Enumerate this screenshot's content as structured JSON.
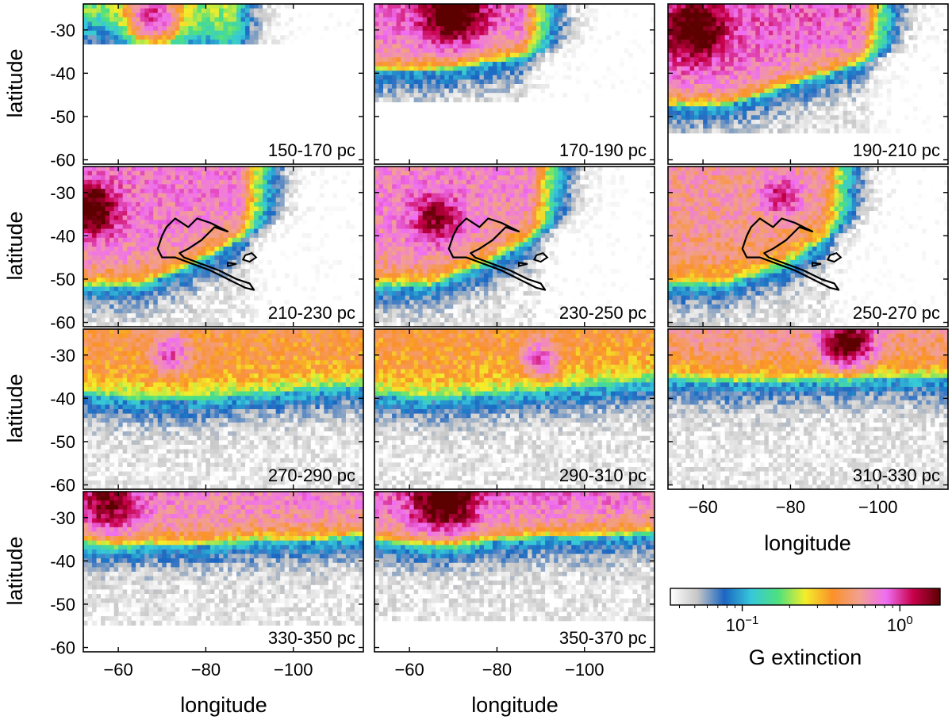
{
  "chart_data": {
    "type": "heatmap",
    "panels": [
      {
        "label": "150-170 pc",
        "map": {
          "seed": 1,
          "ridge": [
            -30,
            -30,
            -32,
            -36,
            -40,
            -40
          ],
          "fill": 0.15,
          "amp": 0.55,
          "rows": 12,
          "cutoff_lon": -86,
          "blob": [
            -68,
            -27,
            5,
            0.9
          ]
        }
      },
      {
        "label": "170-190 pc",
        "map": {
          "seed": 2,
          "ridge": [
            -40,
            -40,
            -38,
            -36,
            -34,
            -32
          ],
          "fill": 0.55,
          "amp": 1.0,
          "rows": 30,
          "cutoff_lon": -86,
          "blob": [
            -70,
            -26,
            6,
            1.6
          ]
        }
      },
      {
        "label": "190-210 pc",
        "map": {
          "seed": 3,
          "ridge": [
            -48,
            -48,
            -44,
            -40,
            -36,
            -34
          ],
          "fill": 0.6,
          "amp": 0.9,
          "rows": 40,
          "cutoff_lon": -96,
          "blob": [
            -58,
            -30,
            6,
            1.4
          ]
        }
      },
      {
        "label": "210-230 pc",
        "map": {
          "seed": 4,
          "ridge": [
            -52,
            -52,
            -47,
            -40,
            -36,
            -34
          ],
          "fill": 0.6,
          "amp": 0.7,
          "rows": 50,
          "cutoff_lon": -88,
          "blob": [
            -54,
            -34,
            5,
            1.5
          ]
        }
      },
      {
        "label": "230-250 pc",
        "map": {
          "seed": 5,
          "ridge": [
            -52,
            -52,
            -47,
            -40,
            -36,
            -34
          ],
          "fill": 0.58,
          "amp": 0.65,
          "rows": 50,
          "cutoff_lon": -88,
          "blob": [
            -66,
            -36,
            5,
            0.8
          ]
        }
      },
      {
        "label": "250-270 pc",
        "map": {
          "seed": 6,
          "ridge": [
            -52,
            -52,
            -48,
            -40,
            -36,
            -34
          ],
          "fill": 0.5,
          "amp": 0.55,
          "rows": 50,
          "cutoff_lon": -88,
          "blob": [
            -78,
            -31,
            4,
            0.6
          ]
        }
      },
      {
        "label": "270-290 pc",
        "map": {
          "seed": 7,
          "ridge": [
            -40,
            -41,
            -41,
            -40,
            -39,
            -38
          ],
          "fill": 0.4,
          "amp": 0.4,
          "rows": 50,
          "cutoff_lon": -130,
          "blob": [
            -72,
            -30,
            4,
            0.5
          ]
        }
      },
      {
        "label": "290-310 pc",
        "map": {
          "seed": 8,
          "ridge": [
            -40,
            -41,
            -40,
            -39,
            -38,
            -37
          ],
          "fill": 0.38,
          "amp": 0.4,
          "rows": 50,
          "cutoff_lon": -130,
          "blob": [
            -90,
            -31,
            4,
            0.5
          ]
        }
      },
      {
        "label": "310-330 pc",
        "map": {
          "seed": 9,
          "ridge": [
            -36,
            -37,
            -37,
            -36,
            -36,
            -36
          ],
          "fill": 0.5,
          "amp": 0.5,
          "rows": 50,
          "cutoff_lon": -130,
          "blob": [
            -93,
            -27,
            5,
            1.4
          ]
        }
      },
      {
        "label": "330-350 pc",
        "map": {
          "seed": 10,
          "ridge": [
            -36,
            -37,
            -37,
            -36,
            -36,
            -35
          ],
          "fill": 0.65,
          "amp": 0.6,
          "rows": 42,
          "cutoff_lon": -130,
          "blob": [
            -58,
            -27,
            6,
            0.9
          ]
        }
      },
      {
        "label": "350-370 pc",
        "map": {
          "seed": 11,
          "ridge": [
            -36,
            -37,
            -36,
            -35,
            -35,
            -34
          ],
          "fill": 0.75,
          "amp": 0.6,
          "rows": 40,
          "cutoff_lon": -130,
          "blob": [
            -68,
            -26,
            6,
            1.6
          ]
        }
      }
    ],
    "contour_panels": [
      "210-230 pc",
      "230-250 pc",
      "250-270 pc"
    ],
    "contour": {
      "outline": [
        [
          -85,
          -39
        ],
        [
          -82,
          -38
        ],
        [
          -80,
          -40
        ],
        [
          -79,
          -41
        ],
        [
          -76,
          -43
        ],
        [
          -74,
          -44
        ],
        [
          -75,
          -45
        ],
        [
          -79,
          -46.5
        ],
        [
          -83,
          -48
        ],
        [
          -87,
          -50
        ],
        [
          -90,
          -51
        ],
        [
          -91,
          -52.5
        ],
        [
          -89,
          -52
        ],
        [
          -86,
          -50.5
        ],
        [
          -81,
          -48
        ],
        [
          -77,
          -46.5
        ],
        [
          -73,
          -45
        ],
        [
          -70,
          -45
        ],
        [
          -69,
          -43
        ],
        [
          -70,
          -40
        ],
        [
          -71,
          -38
        ],
        [
          -73,
          -36
        ],
        [
          -76,
          -38
        ],
        [
          -78,
          -36
        ],
        [
          -81,
          -37
        ]
      ],
      "islands": [
        [
          [
            -89,
            -44.5
          ],
          [
            -90.5,
            -44
          ],
          [
            -91.5,
            -45
          ],
          [
            -90,
            -46
          ],
          [
            -88.5,
            -45.5
          ]
        ],
        [
          [
            -85,
            -46.2
          ],
          [
            -87,
            -46.5
          ],
          [
            -85,
            -47
          ]
        ]
      ]
    },
    "x": {
      "label": "longitude",
      "lim": [
        -52,
        -116
      ],
      "ticks": [
        -60,
        -80,
        -100
      ]
    },
    "y": {
      "label": "latitude",
      "lim": [
        -61,
        -24
      ],
      "ticks": [
        -30,
        -40,
        -50,
        -60
      ]
    },
    "colorbar": {
      "label": "G extinction",
      "scale": "log",
      "range": [
        0.035,
        1.8
      ],
      "tick_labels": [
        {
          "base": "10",
          "exp": "−1",
          "value": 0.1
        },
        {
          "base": "10",
          "exp": "0",
          "value": 1.0
        }
      ],
      "stops": [
        "#ffffff",
        "#c6c6c6",
        "#1b66c2",
        "#37c8da",
        "#4ee07e",
        "#f4ee2a",
        "#fa9128",
        "#f2a090",
        "#ef6ef2",
        "#c8004a",
        "#5c0000"
      ]
    }
  }
}
